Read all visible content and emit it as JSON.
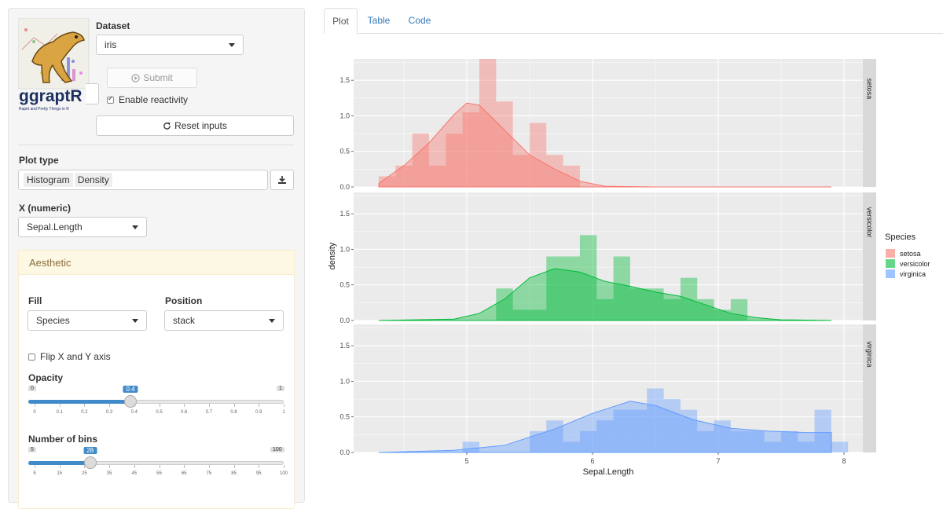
{
  "sidebar": {
    "logo": {
      "name": "ggraptR",
      "tagline": "Rapid and Pretty Things in R"
    },
    "dataset": {
      "label": "Dataset",
      "value": "iris"
    },
    "submit_label": "Submit",
    "reactivity": {
      "label": "Enable reactivity",
      "checked": true
    },
    "reset_label": "Reset inputs",
    "plot_type": {
      "label": "Plot type",
      "values": [
        "Histogram",
        "Density"
      ]
    },
    "x": {
      "label": "X (numeric)",
      "value": "Sepal.Length"
    },
    "aesthetic": {
      "title": "Aesthetic",
      "fill": {
        "label": "Fill",
        "value": "Species"
      },
      "position": {
        "label": "Position",
        "value": "stack"
      },
      "flip": {
        "label": "Flip X and Y axis",
        "checked": false
      },
      "opacity": {
        "label": "Opacity",
        "min": "0",
        "max": "1",
        "value": "0.4",
        "value_num": 0.4,
        "ticks": [
          "0",
          "0.1",
          "0.2",
          "0.3",
          "0.4",
          "0.5",
          "0.6",
          "0.7",
          "0.8",
          "0.9",
          "1"
        ]
      },
      "bins": {
        "label": "Number of bins",
        "min": "5",
        "max": "100",
        "value": "28",
        "value_num": 28,
        "ticks": [
          "5",
          "15",
          "25",
          "35",
          "45",
          "55",
          "65",
          "75",
          "85",
          "95",
          "100"
        ]
      }
    }
  },
  "tabs": [
    {
      "label": "Plot",
      "active": true
    },
    {
      "label": "Table",
      "active": false
    },
    {
      "label": "Code",
      "active": false
    }
  ],
  "colors": {
    "setosa": "#f8766d",
    "versicolor": "#00ba38",
    "virginica": "#619cff",
    "accent": "#428bca"
  },
  "chart_data": {
    "type": "histogram+density",
    "facet_by": "Species",
    "xlabel": "Sepal.Length",
    "ylabel": "density",
    "xlim": [
      4.1,
      8.15
    ],
    "ylim": [
      0,
      1.8
    ],
    "x_ticks": [
      5,
      6,
      7,
      8
    ],
    "y_ticks": [
      "0.0",
      "0.5",
      "1.0",
      "1.5"
    ],
    "legend": {
      "title": "Species",
      "placement": "right",
      "entries": [
        "setosa",
        "versicolor",
        "virginica"
      ]
    },
    "bin_width": 0.1333,
    "bin_start": 4.3,
    "panels": [
      {
        "label": "setosa",
        "color": "#f8766d",
        "hist": [
          0.15,
          0.3,
          0.75,
          0.3,
          0.75,
          1.05,
          1.8,
          1.2,
          0.45,
          0.9,
          0.45,
          0.3,
          0,
          0,
          0,
          0,
          0,
          0,
          0,
          0,
          0,
          0,
          0,
          0,
          0,
          0,
          0,
          0
        ],
        "density_x": [
          4.3,
          4.5,
          4.7,
          4.9,
          5.0,
          5.1,
          5.3,
          5.5,
          5.7,
          5.9,
          6.1,
          6.5,
          7.9
        ],
        "density_y": [
          0.05,
          0.3,
          0.62,
          1.02,
          1.18,
          1.15,
          0.8,
          0.45,
          0.25,
          0.08,
          0.01,
          0,
          0
        ]
      },
      {
        "label": "versicolor",
        "color": "#00ba38",
        "hist": [
          0,
          0,
          0,
          0,
          0,
          0,
          0,
          0.45,
          0.15,
          0.15,
          0.9,
          0.9,
          1.2,
          0.3,
          0.9,
          0.45,
          0.45,
          0.3,
          0.6,
          0.3,
          0.15,
          0.3,
          0,
          0,
          0,
          0,
          0,
          0
        ],
        "density_x": [
          4.3,
          4.9,
          5.1,
          5.3,
          5.5,
          5.7,
          5.9,
          6.1,
          6.3,
          6.5,
          6.7,
          7.1,
          7.3,
          7.5,
          7.9
        ],
        "density_y": [
          0,
          0.02,
          0.1,
          0.3,
          0.6,
          0.73,
          0.68,
          0.55,
          0.48,
          0.4,
          0.34,
          0.1,
          0.04,
          0.01,
          0
        ]
      },
      {
        "label": "virginica",
        "color": "#619cff",
        "hist": [
          0,
          0,
          0,
          0,
          0,
          0.15,
          0,
          0,
          0,
          0.3,
          0.45,
          0.15,
          0.3,
          0.45,
          0.6,
          0.6,
          0.9,
          0.75,
          0.6,
          0.3,
          0.45,
          0.3,
          0.3,
          0.15,
          0.3,
          0.15,
          0.6,
          0.15
        ],
        "density_x": [
          4.3,
          4.9,
          5.3,
          5.7,
          6.0,
          6.3,
          6.5,
          6.8,
          7.1,
          7.4,
          7.7,
          7.9
        ],
        "density_y": [
          0,
          0.03,
          0.1,
          0.33,
          0.55,
          0.72,
          0.66,
          0.46,
          0.34,
          0.3,
          0.28,
          0.28
        ]
      }
    ]
  }
}
